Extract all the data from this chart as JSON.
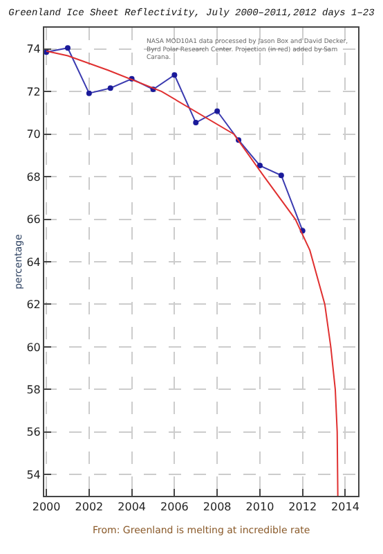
{
  "chart_data": {
    "type": "line",
    "title": "Greenland Ice Sheet Reflectivity, July 2000–2011,2012 days 1–23",
    "ylabel": "percentage",
    "annotations": [
      "NASA MOD10A1 data processed by Jason Box and David Decker, Byrd Polar Research Center. Projection (in red) added by Sam Carana.",
      "From: Greenland is melting at incredible rate"
    ],
    "series": [
      {
        "color": "#3b3bb0",
        "marker": "circle",
        "x": [
          2000,
          2001,
          2002,
          2003,
          2004,
          2005,
          2006,
          2007,
          2008,
          2009,
          2010,
          2011,
          2012
        ],
        "values": [
          73.85,
          74.05,
          71.92,
          72.16,
          72.6,
          72.1,
          72.78,
          70.54,
          71.08,
          69.72,
          68.52,
          68.06,
          65.46
        ]
      },
      {
        "color": "#e03030",
        "marker": "none",
        "x": [
          2000,
          2001,
          2002.9,
          2005.4,
          2008.78,
          2010.2,
          2011.66,
          2012.34,
          2013.04,
          2013.32,
          2013.53,
          2013.62,
          2013.65
        ],
        "values": [
          73.9,
          73.68,
          73.0,
          72.0,
          70.0,
          68.0,
          66.0,
          64.54,
          62.0,
          60.0,
          58.0,
          56.0,
          53.0
        ]
      }
    ],
    "xlim": [
      1999.9,
      2014.6
    ],
    "xticks": [
      2000,
      2002,
      2004,
      2006,
      2008,
      2010,
      2012,
      2014
    ],
    "ylim": [
      53,
      75
    ],
    "yticks": [
      54,
      56,
      58,
      60,
      62,
      64,
      66,
      68,
      70,
      72,
      74
    ],
    "grid": true
  }
}
